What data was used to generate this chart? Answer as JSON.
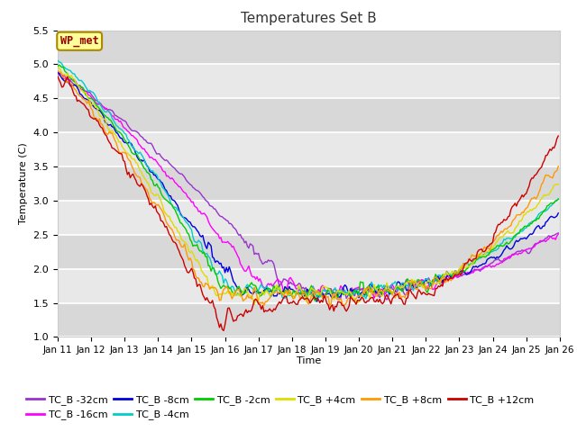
{
  "title": "Temperatures Set B",
  "xlabel": "Time",
  "ylabel": "Temperature (C)",
  "ylim": [
    1.0,
    5.5
  ],
  "xlim": [
    0,
    360
  ],
  "series_colors": {
    "TC_B -32cm": "#9933cc",
    "TC_B -16cm": "#ff00ff",
    "TC_B -8cm": "#0000dd",
    "TC_B -4cm": "#00cccc",
    "TC_B -2cm": "#00cc00",
    "TC_B +4cm": "#dddd00",
    "TC_B +8cm": "#ff9900",
    "TC_B +12cm": "#cc0000"
  },
  "legend_order": [
    "TC_B -32cm",
    "TC_B -16cm",
    "TC_B -8cm",
    "TC_B -4cm",
    "TC_B -2cm",
    "TC_B +4cm",
    "TC_B +8cm",
    "TC_B +12cm"
  ],
  "xtick_labels": [
    "Jan 11",
    "Jan 12",
    "Jan 13",
    "Jan 14",
    "Jan 15",
    "Jan 16",
    "Jan 17",
    "Jan 18",
    "Jan 19",
    "Jan 20",
    "Jan 21",
    "Jan 22",
    "Jan 23",
    "Jan 24",
    "Jan 25",
    "Jan 26"
  ],
  "wp_met_box_color": "#ffff99",
  "wp_met_text_color": "#990000",
  "background_color": "#ffffff",
  "plot_bg_color": "#e8e8e8",
  "grid_color": "#ffffff",
  "figsize": [
    6.4,
    4.8
  ],
  "dpi": 100
}
